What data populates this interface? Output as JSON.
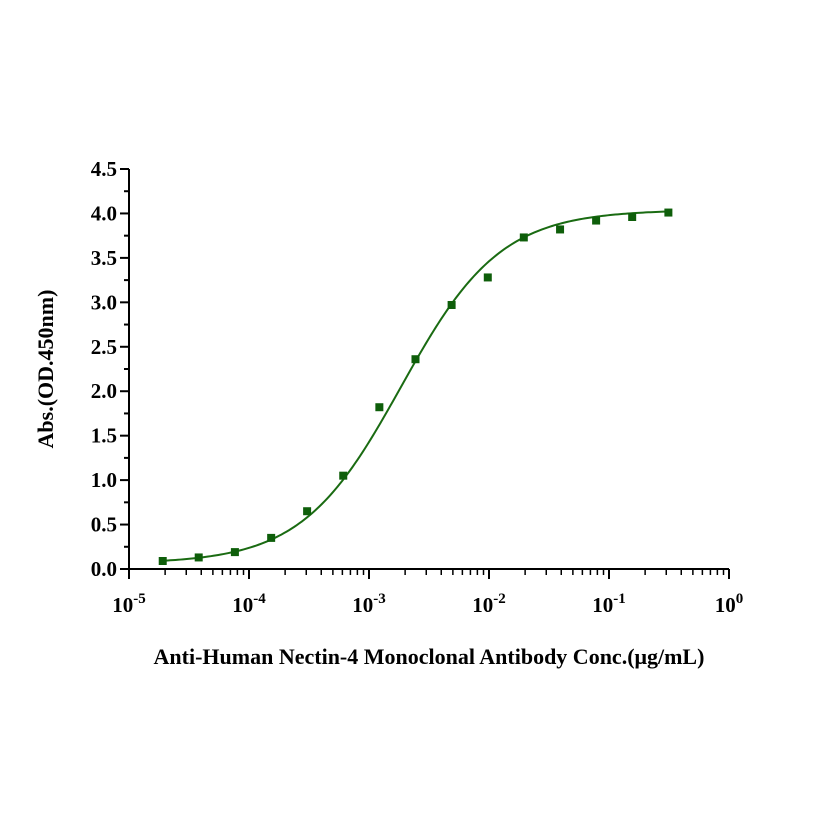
{
  "chart_data": {
    "type": "scatter",
    "title": "",
    "xlabel": "Anti-Human Nectin-4 Monoclonal Antibody Conc.(μg/mL)",
    "ylabel": "Abs.(OD.450nm)",
    "xscale": "log",
    "xlim": [
      1e-05,
      1
    ],
    "ylim": [
      0,
      4.5
    ],
    "x_tick_labels": [
      {
        "base": "10",
        "exp": "-5"
      },
      {
        "base": "10",
        "exp": "-4"
      },
      {
        "base": "10",
        "exp": "-3"
      },
      {
        "base": "10",
        "exp": "-2"
      },
      {
        "base": "10",
        "exp": "-1"
      },
      {
        "base": "10",
        "exp": "0"
      }
    ],
    "y_tick_labels": [
      "0.0",
      "0.5",
      "1.0",
      "1.5",
      "2.0",
      "2.5",
      "3.0",
      "3.5",
      "4.0",
      "4.5"
    ],
    "grid": false,
    "legend": "none",
    "color": "#1a6b12",
    "marker_color": "#0e5e0a",
    "series": [
      {
        "x": [
          1.91e-05,
          3.81e-05,
          7.63e-05,
          0.000153,
          0.000305,
          0.00061,
          0.00122,
          0.00244,
          0.00488,
          0.00977,
          0.0195,
          0.0391,
          0.0781,
          0.156,
          0.3125
        ],
        "y": [
          0.09,
          0.13,
          0.19,
          0.35,
          0.65,
          1.05,
          1.82,
          2.36,
          2.97,
          3.28,
          3.73,
          3.82,
          3.92,
          3.96,
          4.01
        ]
      }
    ],
    "fit": {
      "model": "4PL",
      "bottom": 0.06,
      "top": 4.04,
      "ec50": 0.00185,
      "hill": 1.05
    }
  }
}
